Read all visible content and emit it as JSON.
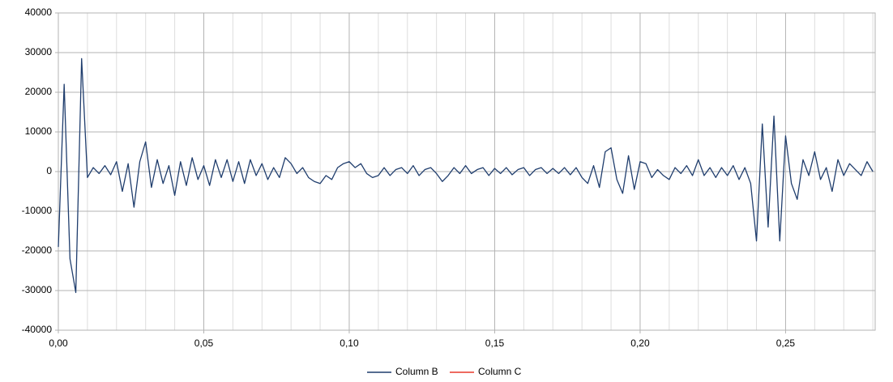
{
  "chart_data": {
    "type": "line",
    "x": [
      0,
      0.002,
      0.004,
      0.006,
      0.008,
      0.01,
      0.012,
      0.014,
      0.016,
      0.018,
      0.02,
      0.022,
      0.024,
      0.026,
      0.028,
      0.03,
      0.032,
      0.034,
      0.036,
      0.038,
      0.04,
      0.042,
      0.044,
      0.046,
      0.048,
      0.05,
      0.052,
      0.054,
      0.056,
      0.058,
      0.06,
      0.062,
      0.064,
      0.066,
      0.068,
      0.07,
      0.072,
      0.074,
      0.076,
      0.078,
      0.08,
      0.082,
      0.084,
      0.086,
      0.088,
      0.09,
      0.092,
      0.094,
      0.096,
      0.098,
      0.1,
      0.102,
      0.104,
      0.106,
      0.108,
      0.11,
      0.112,
      0.114,
      0.116,
      0.118,
      0.12,
      0.122,
      0.124,
      0.126,
      0.128,
      0.13,
      0.132,
      0.134,
      0.136,
      0.138,
      0.14,
      0.142,
      0.144,
      0.146,
      0.148,
      0.15,
      0.152,
      0.154,
      0.156,
      0.158,
      0.16,
      0.162,
      0.164,
      0.166,
      0.168,
      0.17,
      0.172,
      0.174,
      0.176,
      0.178,
      0.18,
      0.182,
      0.184,
      0.186,
      0.188,
      0.19,
      0.192,
      0.194,
      0.196,
      0.198,
      0.2,
      0.202,
      0.204,
      0.206,
      0.208,
      0.21,
      0.212,
      0.214,
      0.216,
      0.218,
      0.22,
      0.222,
      0.224,
      0.226,
      0.228,
      0.23,
      0.232,
      0.234,
      0.236,
      0.238,
      0.24,
      0.242,
      0.244,
      0.246,
      0.248,
      0.25,
      0.252,
      0.254,
      0.256,
      0.258,
      0.26,
      0.262,
      0.264,
      0.266,
      0.268,
      0.27,
      0.272,
      0.274,
      0.276,
      0.278,
      0.28
    ],
    "series": [
      {
        "name": "Column B",
        "color": "#1f3d6d",
        "values": [
          -19000,
          22000,
          -22000,
          -30500,
          28500,
          -1500,
          1000,
          -500,
          1500,
          -800,
          2500,
          -5000,
          2000,
          -9000,
          2500,
          7500,
          -4000,
          3000,
          -3000,
          1500,
          -6000,
          2500,
          -3500,
          3500,
          -2000,
          1500,
          -3500,
          3000,
          -1500,
          3000,
          -2500,
          2500,
          -3000,
          3000,
          -1000,
          2000,
          -2000,
          1000,
          -1500,
          3500,
          2000,
          -500,
          1000,
          -1500,
          -2500,
          -3000,
          -1000,
          -2000,
          1000,
          2000,
          2500,
          1000,
          2000,
          -500,
          -1500,
          -1000,
          1000,
          -1000,
          500,
          1000,
          -500,
          1500,
          -1000,
          500,
          1000,
          -500,
          -2500,
          -1000,
          1000,
          -500,
          1500,
          -500,
          500,
          1000,
          -1000,
          800,
          -500,
          1000,
          -800,
          500,
          1000,
          -1000,
          500,
          1000,
          -500,
          800,
          -500,
          1000,
          -800,
          1000,
          -1500,
          -3000,
          1500,
          -4000,
          5000,
          6000,
          -2000,
          -5500,
          4000,
          -4500,
          2500,
          2000,
          -1500,
          500,
          -1000,
          -2000,
          1000,
          -500,
          1500,
          -1000,
          3000,
          -1000,
          1000,
          -1500,
          1000,
          -1000,
          1500,
          -2000,
          1000,
          -3000,
          -17500,
          12000,
          -14000,
          14000,
          -17500,
          9000,
          -3000,
          -7000,
          3000,
          -1000,
          5000,
          -2000,
          1000,
          -5000,
          3000,
          -1000,
          2000,
          500,
          -1000,
          2500,
          0
        ]
      },
      {
        "name": "Column C",
        "color": "#e8392b",
        "values": [
          null,
          null,
          null,
          null,
          null,
          null,
          null,
          null,
          null,
          null,
          null,
          null,
          null,
          null,
          null,
          null,
          null,
          null,
          null,
          null,
          null,
          null,
          null,
          null,
          null,
          null,
          null,
          null,
          null,
          null,
          null,
          null,
          null,
          null,
          null,
          null,
          null,
          null,
          null,
          null,
          null,
          null,
          null,
          null,
          null,
          null,
          null,
          null,
          null,
          null,
          null,
          null,
          null,
          null,
          null,
          null,
          null,
          null,
          null,
          null,
          null,
          null,
          null,
          null,
          null,
          null,
          null,
          null,
          null,
          null,
          null,
          null,
          null,
          null,
          null,
          null,
          null,
          null,
          null,
          null,
          null,
          null,
          null,
          null,
          null,
          null,
          null,
          null,
          null,
          null,
          null,
          null,
          null,
          null,
          null,
          null,
          null,
          null,
          null,
          null,
          null,
          null,
          null,
          null,
          null,
          null,
          null,
          null,
          null,
          null,
          null,
          null,
          null,
          null,
          null,
          null,
          null,
          null,
          null,
          null,
          null,
          null,
          null,
          null,
          null,
          null,
          null,
          null,
          null,
          null,
          null,
          null,
          null,
          null,
          null,
          null,
          null,
          null,
          null,
          null,
          null
        ]
      }
    ],
    "xlim": [
      0,
      0.2808
    ],
    "xticks": [
      {
        "value": 0,
        "label": "0,00"
      },
      {
        "value": 0.05,
        "label": "0,05"
      },
      {
        "value": 0.1,
        "label": "0,10"
      },
      {
        "value": 0.15,
        "label": "0,15"
      },
      {
        "value": 0.2,
        "label": "0,20"
      },
      {
        "value": 0.25,
        "label": "0,25"
      }
    ],
    "ylim": [
      -40000,
      40000
    ],
    "yticks": [
      -40000,
      -30000,
      -20000,
      -10000,
      0,
      10000,
      20000,
      30000,
      40000
    ],
    "grid": true,
    "legend": "bottom"
  }
}
